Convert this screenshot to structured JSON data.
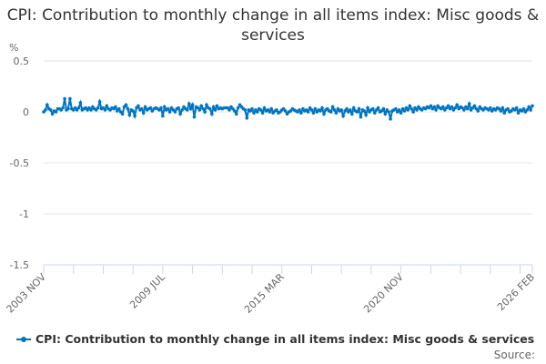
{
  "chart_data": {
    "type": "line",
    "title": "CPI: Contribution to monthly change in all items index: Misc goods & services",
    "ylabel": "%",
    "ylim": [
      -1.5,
      0.5
    ],
    "yticks": [
      "0.5",
      "0",
      "-0.5",
      "-1",
      "-1.5"
    ],
    "ytick_values": [
      0.5,
      0,
      -0.5,
      -1,
      -1.5
    ],
    "x_start": "2003 NOV",
    "x_end": "2026 FEB",
    "xtick_labels": [
      "2003 NOV",
      "2009 JUL",
      "2015 MAR",
      "2020 NOV",
      "2026 FEB"
    ],
    "grid": "horizontal",
    "legend_position": "bottom",
    "series": [
      {
        "name": "CPI: Contribution to monthly change in all items index: Misc goods & services",
        "color": "#0075c2",
        "values": [
          0.0,
          0.02,
          0.07,
          0.03,
          0.02,
          -0.02,
          0.01,
          0.0,
          0.03,
          0.03,
          0.02,
          0.04,
          0.13,
          0.02,
          0.03,
          0.13,
          0.03,
          0.02,
          0.04,
          0.02,
          0.04,
          0.09,
          0.02,
          0.03,
          0.04,
          0.02,
          0.04,
          0.02,
          0.05,
          0.03,
          0.02,
          0.04,
          0.1,
          0.03,
          0.04,
          0.02,
          0.06,
          0.03,
          0.02,
          0.04,
          0.03,
          0.05,
          0.01,
          0.03,
          0.0,
          -0.02,
          0.05,
          0.07,
          0.03,
          -0.03,
          0.02,
          0.01,
          -0.04,
          0.04,
          0.06,
          0.02,
          0.03,
          -0.01,
          0.05,
          0.02,
          0.03,
          0.04,
          0.01,
          0.03,
          0.04,
          0.03,
          0.02,
          0.04,
          -0.04,
          0.05,
          0.02,
          0.03,
          0.0,
          0.04,
          0.02,
          0.0,
          0.03,
          0.04,
          -0.02,
          0.02,
          0.05,
          0.03,
          0.02,
          0.08,
          0.03,
          0.07,
          -0.05,
          0.05,
          0.04,
          0.02,
          0.06,
          0.03,
          0.0,
          0.07,
          0.04,
          0.03,
          -0.02,
          0.05,
          0.02,
          0.06,
          0.03,
          0.04,
          0.03,
          0.04,
          0.04,
          0.04,
          0.02,
          0.05,
          0.03,
          0.01,
          -0.02,
          0.04,
          0.07,
          0.05,
          0.03,
          0.02,
          -0.06,
          0.02,
          0.01,
          0.03,
          -0.01,
          0.02,
          0.0,
          0.03,
          0.02,
          -0.01,
          0.04,
          0.01,
          0.02,
          0.0,
          0.03,
          -0.01,
          0.01,
          0.02,
          -0.01,
          0.0,
          0.02,
          0.03,
          0.01,
          -0.02,
          0.0,
          0.01,
          0.03,
          0.02,
          0.01,
          0.0,
          0.02,
          -0.01,
          0.03,
          0.01,
          0.02,
          0.0,
          0.04,
          0.02,
          -0.01,
          0.03,
          0.0,
          0.02,
          0.01,
          0.04,
          -0.02,
          0.02,
          0.03,
          0.01,
          0.0,
          0.05,
          0.02,
          -0.01,
          0.03,
          0.01,
          0.02,
          -0.04,
          0.01,
          0.03,
          0.0,
          0.02,
          -0.02,
          0.04,
          0.01,
          0.0,
          0.03,
          -0.05,
          0.02,
          0.01,
          -0.03,
          0.04,
          0.0,
          0.02,
          0.03,
          -0.01,
          0.02,
          0.04,
          0.0,
          0.01,
          0.03,
          -0.02,
          0.02,
          0.0,
          -0.07,
          0.01,
          0.02,
          0.03,
          0.0,
          0.02,
          -0.01,
          0.03,
          0.01,
          0.04,
          0.02,
          0.06,
          0.03,
          0.0,
          0.04,
          0.02,
          0.05,
          0.03,
          0.02,
          0.04,
          0.03,
          0.05,
          0.04,
          0.06,
          0.03,
          0.05,
          0.02,
          0.06,
          0.04,
          0.03,
          0.05,
          0.02,
          0.04,
          0.06,
          0.03,
          0.05,
          0.02,
          0.04,
          0.07,
          0.03,
          0.05,
          0.04,
          0.02,
          0.05,
          0.03,
          0.08,
          0.02,
          0.04,
          0.06,
          0.03,
          0.01,
          0.05,
          0.03,
          0.02,
          0.04,
          0.03,
          0.02,
          0.04,
          0.01,
          0.03,
          0.02,
          0.04,
          0.03,
          0.01,
          0.04,
          -0.01,
          0.02,
          0.03,
          0.0,
          0.01,
          0.03,
          0.02,
          0.04,
          -0.01,
          0.02,
          0.01,
          0.03,
          0.0,
          0.02,
          0.05,
          0.02,
          0.06
        ]
      }
    ]
  },
  "source_label": "Source:"
}
